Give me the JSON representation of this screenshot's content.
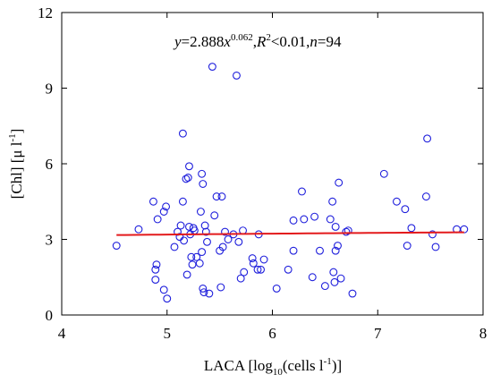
{
  "chart_data": {
    "type": "scatter",
    "title": "",
    "xlabel": "",
    "ylabel": "",
    "xlim": [
      4,
      8
    ],
    "ylim": [
      0,
      12
    ],
    "xticks": [
      "4",
      "5",
      "6",
      "7",
      "8"
    ],
    "yticks": [
      "0",
      "3",
      "6",
      "9",
      "12"
    ],
    "grid": false,
    "colors": {
      "points": "#1f1fdc",
      "fit": "#e31a1c"
    },
    "fit": {
      "a": 2.888,
      "b": 0.062
    },
    "points": [
      [
        4.52,
        2.75
      ],
      [
        4.73,
        3.4
      ],
      [
        4.87,
        4.5
      ],
      [
        4.91,
        3.8
      ],
      [
        4.9,
        2.0
      ],
      [
        4.89,
        1.8
      ],
      [
        4.89,
        1.4
      ],
      [
        4.97,
        4.1
      ],
      [
        4.99,
        4.3
      ],
      [
        4.97,
        1.0
      ],
      [
        5.0,
        0.65
      ],
      [
        5.07,
        2.7
      ],
      [
        5.1,
        3.3
      ],
      [
        5.12,
        3.1
      ],
      [
        5.13,
        3.55
      ],
      [
        5.15,
        7.2
      ],
      [
        5.15,
        4.5
      ],
      [
        5.16,
        2.95
      ],
      [
        5.18,
        5.4
      ],
      [
        5.2,
        5.45
      ],
      [
        5.21,
        5.9
      ],
      [
        5.21,
        3.5
      ],
      [
        5.22,
        3.2
      ],
      [
        5.23,
        2.3
      ],
      [
        5.24,
        2.0
      ],
      [
        5.26,
        3.35
      ],
      [
        5.28,
        2.3
      ],
      [
        5.19,
        1.6
      ],
      [
        5.31,
        2.05
      ],
      [
        5.32,
        4.1
      ],
      [
        5.33,
        5.6
      ],
      [
        5.34,
        5.2
      ],
      [
        5.33,
        2.5
      ],
      [
        5.34,
        1.05
      ],
      [
        5.35,
        0.9
      ],
      [
        5.36,
        3.55
      ],
      [
        5.37,
        3.3
      ],
      [
        5.38,
        2.9
      ],
      [
        5.4,
        0.85
      ],
      [
        5.43,
        9.85
      ],
      [
        5.45,
        3.95
      ],
      [
        5.47,
        4.7
      ],
      [
        5.5,
        2.55
      ],
      [
        5.51,
        1.1
      ],
      [
        5.52,
        4.7
      ],
      [
        5.53,
        2.7
      ],
      [
        5.55,
        3.3
      ],
      [
        5.58,
        3.0
      ],
      [
        5.63,
        3.2
      ],
      [
        5.66,
        9.5
      ],
      [
        5.68,
        2.9
      ],
      [
        5.7,
        1.45
      ],
      [
        5.72,
        3.35
      ],
      [
        5.73,
        1.7
      ],
      [
        5.81,
        2.25
      ],
      [
        5.82,
        2.05
      ],
      [
        5.86,
        1.8
      ],
      [
        5.87,
        3.2
      ],
      [
        5.89,
        1.8
      ],
      [
        5.92,
        2.2
      ],
      [
        6.04,
        1.05
      ],
      [
        6.15,
        1.8
      ],
      [
        6.2,
        2.55
      ],
      [
        6.28,
        4.9
      ],
      [
        6.3,
        3.8
      ],
      [
        6.38,
        1.5
      ],
      [
        6.4,
        3.9
      ],
      [
        6.45,
        2.55
      ],
      [
        6.5,
        1.15
      ],
      [
        6.55,
        3.8
      ],
      [
        6.57,
        4.5
      ],
      [
        6.58,
        1.7
      ],
      [
        6.59,
        1.3
      ],
      [
        6.6,
        3.5
      ],
      [
        6.62,
        2.75
      ],
      [
        6.63,
        5.25
      ],
      [
        6.6,
        2.55
      ],
      [
        6.65,
        1.45
      ],
      [
        6.7,
        3.3
      ],
      [
        6.72,
        3.35
      ],
      [
        6.76,
        0.85
      ],
      [
        7.06,
        5.6
      ],
      [
        7.18,
        4.5
      ],
      [
        7.26,
        4.2
      ],
      [
        7.28,
        2.75
      ],
      [
        7.32,
        3.45
      ],
      [
        7.46,
        4.7
      ],
      [
        7.47,
        7.0
      ],
      [
        7.52,
        3.2
      ],
      [
        7.55,
        2.7
      ],
      [
        7.75,
        3.4
      ],
      [
        7.82,
        3.4
      ],
      [
        6.2,
        3.75
      ],
      [
        5.25,
        3.45
      ]
    ],
    "annotation": {
      "y": "y",
      "eq": "=2.888",
      "x": "x",
      "exp": "0.062",
      "sep1": ",",
      "R": "R",
      "r2": "2",
      "rest": "<0.01,",
      "n": "n",
      "nval": "=94"
    },
    "ylabel_parts": {
      "main": "[Chl] [μ l",
      "sup": "-1",
      "end": "]"
    },
    "xlabel_parts": {
      "main": "LACA [log",
      "sub": "10",
      "mid": "(cells l",
      "sup": "-1",
      "end": ")]"
    }
  }
}
